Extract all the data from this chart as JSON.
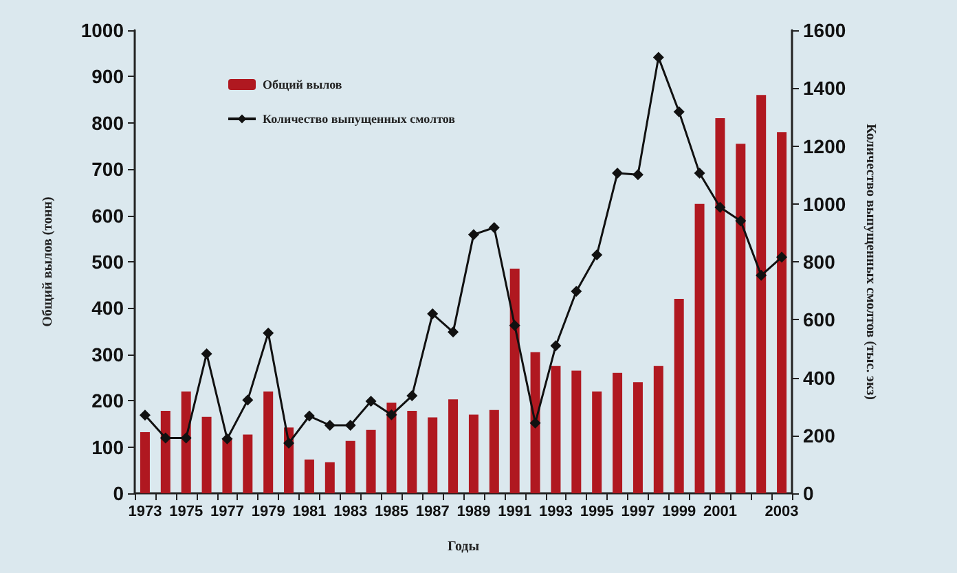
{
  "chart_data": {
    "type": "bar",
    "xlabel": "Годы",
    "ylabel": "Общий вылов (тонн)",
    "y2label": "Количество выпущенных смолтов (тыс. экз)",
    "categories": [
      "1973",
      null,
      "1975",
      null,
      "1977",
      null,
      "1979",
      null,
      "1981",
      null,
      "1983",
      null,
      "1985",
      null,
      "1987",
      null,
      "1989",
      null,
      "1991",
      null,
      "1993",
      null,
      "1995",
      null,
      "1997",
      null,
      "1999",
      null,
      "2001",
      null,
      null,
      "2003"
    ],
    "series": [
      {
        "name": "Общий вылов",
        "color": "#b01820",
        "values": [
          132,
          178,
          220,
          165,
          118,
          127,
          220,
          142,
          73,
          67,
          113,
          137,
          196,
          178,
          164,
          203,
          170,
          180,
          485,
          305,
          275,
          265,
          220,
          260,
          240,
          275,
          420,
          625,
          810,
          755,
          860,
          780
        ]
      },
      {
        "name": "Количество выпущенных смолтов",
        "type": "line",
        "axis": "y2",
        "color": "#111111",
        "marker": "diamond",
        "values": [
          270,
          191,
          191,
          482,
          188,
          322,
          554,
          173,
          267,
          235,
          235,
          318,
          271,
          337,
          620,
          557,
          894,
          918,
          580,
          243,
          510,
          698,
          824,
          1106,
          1101,
          1506,
          1318,
          1106,
          988,
          941,
          753,
          816
        ]
      }
    ],
    "ylim": [
      0,
      1000
    ],
    "yticks": [
      0,
      100,
      200,
      300,
      400,
      500,
      600,
      700,
      800,
      900,
      1000
    ],
    "y2lim": [
      0,
      1600
    ],
    "y2ticks": [
      0,
      200,
      400,
      600,
      800,
      1000,
      1200,
      1400,
      1600
    ],
    "legend": "top left",
    "grid": false
  }
}
